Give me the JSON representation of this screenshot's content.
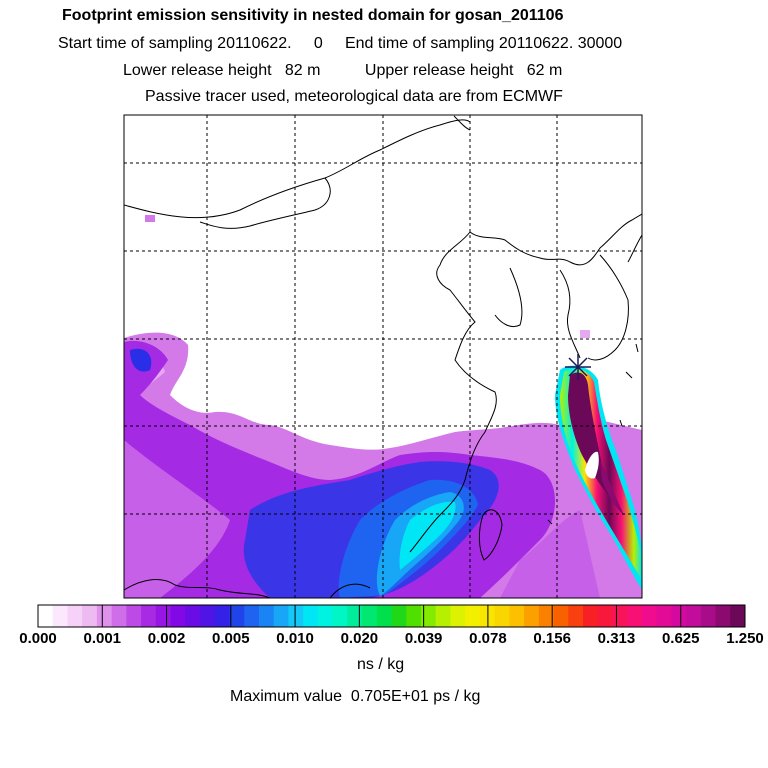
{
  "header": {
    "title": "Footprint emission sensitivity in nested domain for gosan_201106",
    "sampling_line": "Start time of sampling 20110622.     0     End time of sampling 20110622. 30000",
    "release_line": "Lower release height   82 m          Upper release height   62 m",
    "tracer_line": "Passive tracer used, meteorological data are from ECMWF"
  },
  "map": {
    "release_site_marker": "star-marker",
    "grid": "dashed"
  },
  "colorbar": {
    "tick_labels": [
      "0.000",
      "0.001",
      "0.002",
      "0.005",
      "0.010",
      "0.020",
      "0.039",
      "0.078",
      "0.156",
      "0.313",
      "0.625",
      "1.250"
    ],
    "colors": [
      "#ffffff",
      "#fce8fc",
      "#f6d2f8",
      "#eebaf2",
      "#df92ec",
      "#cf6ee8",
      "#bd4ae6",
      "#a82ae2",
      "#9716e4",
      "#8208e6",
      "#6a0ce6",
      "#5014e6",
      "#3420e6",
      "#2044ea",
      "#1e64f0",
      "#1a84f4",
      "#18a6f6",
      "#14c8f8",
      "#00e6f4",
      "#00f2e0",
      "#00f6c4",
      "#00ee9c",
      "#00e872",
      "#00e04c",
      "#20d818",
      "#50e000",
      "#84ea00",
      "#b6f000",
      "#dcf200",
      "#f2f000",
      "#f8e600",
      "#fad600",
      "#fcc000",
      "#fca000",
      "#fa8000",
      "#f86000",
      "#f84010",
      "#f82024",
      "#f8183c",
      "#f81458",
      "#f81074",
      "#f00c8c",
      "#e40a98",
      "#d40aa0",
      "#c20c9c",
      "#a80c88",
      "#8c0a70",
      "#6c0858"
    ],
    "units": "ns / kg"
  },
  "footer": {
    "max_value": "Maximum value  0.705E+01 ps / kg"
  }
}
